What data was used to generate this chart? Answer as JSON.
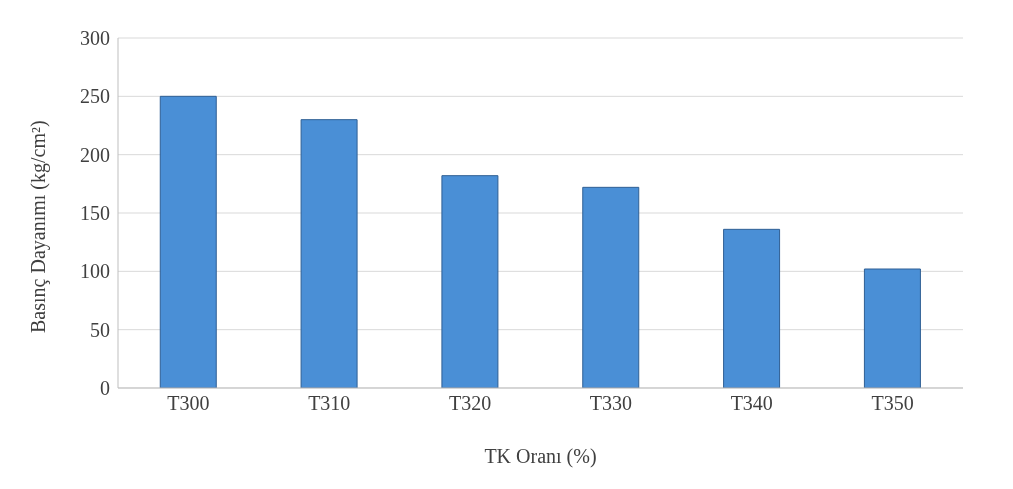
{
  "chart_data": {
    "type": "bar",
    "xlabel": "TK Oranı (%)",
    "ylabel": "Basınç Dayanımı (kg/cm²)",
    "categories": [
      "T300",
      "T310",
      "T320",
      "T330",
      "T340",
      "T350"
    ],
    "values": [
      250,
      230,
      182,
      172,
      136,
      102
    ],
    "color": "#4a8fd6",
    "ylim": [
      0,
      300
    ],
    "yticks": [
      0,
      50,
      100,
      150,
      200,
      250,
      300
    ],
    "grid": "y"
  }
}
